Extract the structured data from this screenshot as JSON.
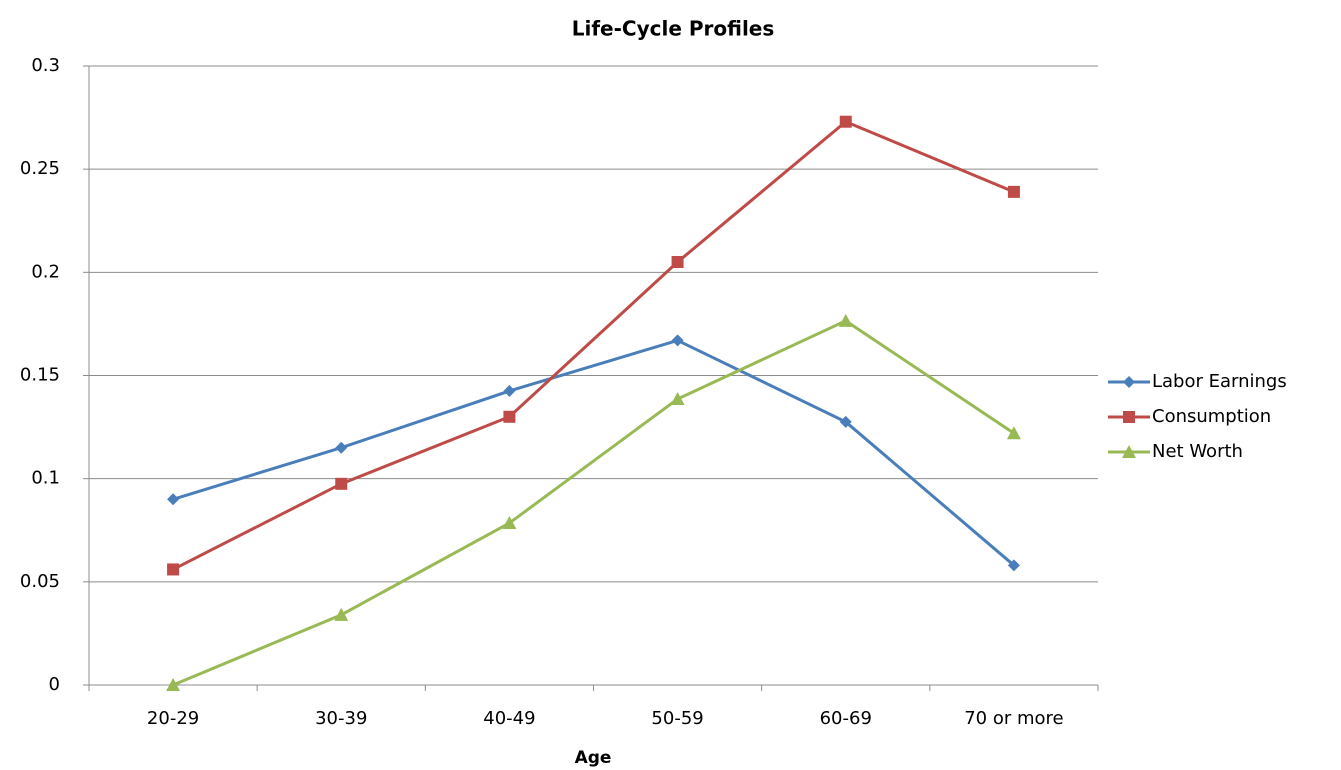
{
  "chart_data": {
    "type": "line",
    "title": "Life-Cycle Profiles",
    "x_label": "Age",
    "categories": [
      "20-29",
      "30-39",
      "40-49",
      "50-59",
      "60-69",
      "70 or more"
    ],
    "series": [
      {
        "name": "Labor Earnings",
        "color": "#4a7ebb",
        "marker": "diamond",
        "values": [
          0.09,
          0.115,
          0.1425,
          0.167,
          0.1275,
          0.058
        ]
      },
      {
        "name": "Consumption",
        "color": "#be4b48",
        "marker": "square",
        "values": [
          0.056,
          0.0975,
          0.13,
          0.205,
          0.273,
          0.239
        ]
      },
      {
        "name": "Net Worth",
        "color": "#98b954",
        "marker": "triangle",
        "values": [
          0,
          0.034,
          0.0785,
          0.1386,
          0.1765,
          0.122
        ]
      }
    ],
    "ylim": [
      0,
      0.3
    ],
    "yticks": [
      0,
      0.05,
      0.1,
      0.15,
      0.2,
      0.25,
      0.3
    ],
    "grid": true,
    "legend": "right"
  }
}
